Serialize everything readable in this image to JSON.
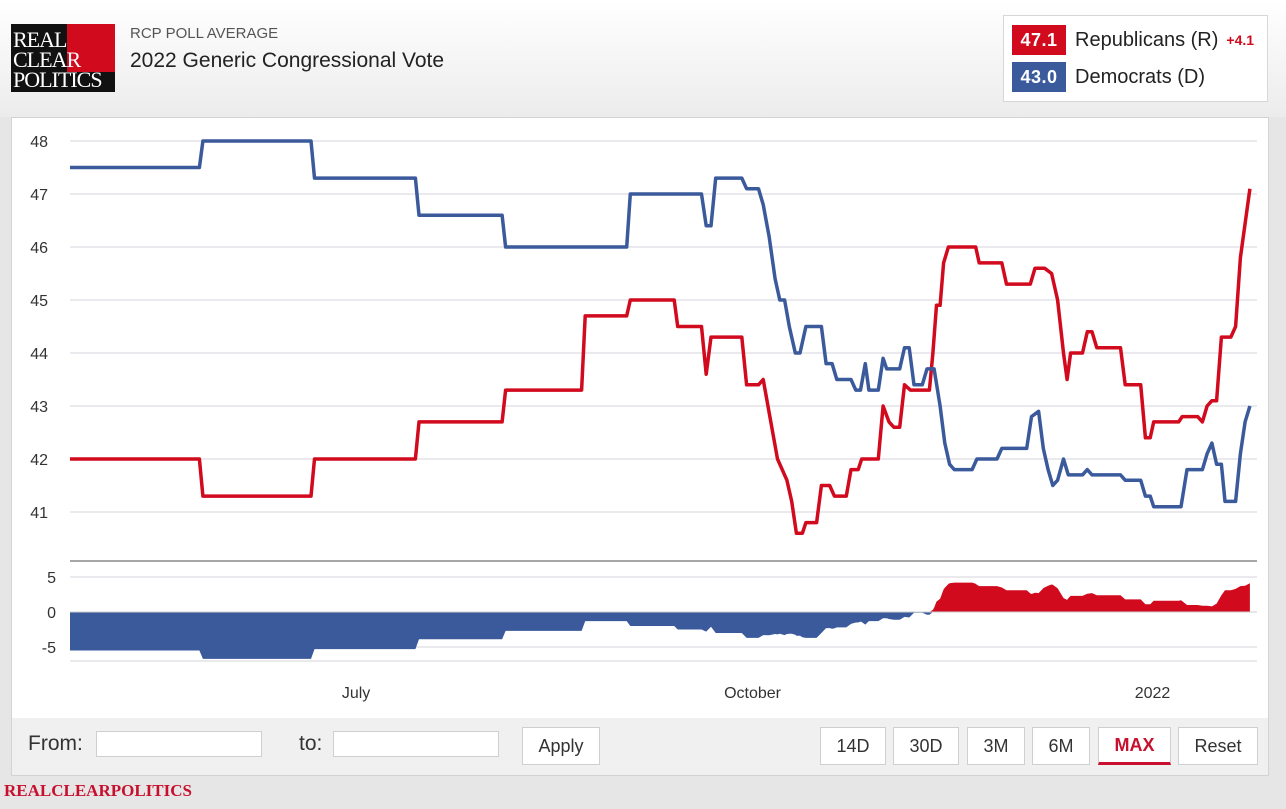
{
  "brand": {
    "logo_lines": [
      "REAL",
      "CLEAR",
      "POLITICS"
    ],
    "footer": "REALCLEARPOLITICS",
    "red": "#d10a1e",
    "blue": "#3a5a9c"
  },
  "header": {
    "supertitle": "RCP POLL AVERAGE",
    "title": "2022 Generic Congressional Vote"
  },
  "legend": [
    {
      "value": "47.1",
      "name": "Republicans (R)",
      "spread": "+4.1",
      "color": "#d10a1e"
    },
    {
      "value": "43.0",
      "name": "Democrats (D)",
      "spread": "",
      "color": "#3a5a9c"
    }
  ],
  "controls": {
    "from_label": "From:",
    "to_label": "to:",
    "from_value": "",
    "to_value": "",
    "apply_label": "Apply",
    "ranges": [
      "14D",
      "30D",
      "3M",
      "6M",
      "MAX"
    ],
    "active_range": "MAX",
    "reset_label": "Reset"
  },
  "chart_data": {
    "type": "line",
    "title": "2022 Generic Congressional Vote",
    "ylim": [
      40.5,
      48.3
    ],
    "yticks": [
      41,
      42,
      43,
      44,
      45,
      46,
      47,
      48
    ],
    "spread_ylim": [
      -9.3,
      9.3
    ],
    "spread_yticks": [
      -5,
      0,
      5
    ],
    "xlim": [
      0,
      1
    ],
    "xticks": [
      {
        "label": "July",
        "x": 0.241
      },
      {
        "label": "October",
        "x": 0.575
      },
      {
        "label": "2022",
        "x": 0.912
      }
    ],
    "series": [
      {
        "name": "Republicans (R)",
        "color": "#d10a1e",
        "points": [
          [
            0.0,
            42.0
          ],
          [
            0.109,
            42.0
          ],
          [
            0.112,
            41.3
          ],
          [
            0.203,
            41.3
          ],
          [
            0.206,
            42.0
          ],
          [
            0.291,
            42.0
          ],
          [
            0.294,
            42.7
          ],
          [
            0.364,
            42.7
          ],
          [
            0.367,
            43.3
          ],
          [
            0.431,
            43.3
          ],
          [
            0.434,
            44.7
          ],
          [
            0.469,
            44.7
          ],
          [
            0.472,
            45.0
          ],
          [
            0.509,
            45.0
          ],
          [
            0.512,
            44.5
          ],
          [
            0.532,
            44.5
          ],
          [
            0.536,
            43.6
          ],
          [
            0.54,
            44.3
          ],
          [
            0.566,
            44.3
          ],
          [
            0.57,
            43.4
          ],
          [
            0.58,
            43.4
          ],
          [
            0.584,
            43.5
          ],
          [
            0.596,
            42.0
          ],
          [
            0.604,
            41.6
          ],
          [
            0.608,
            41.2
          ],
          [
            0.612,
            40.6
          ],
          [
            0.617,
            40.6
          ],
          [
            0.62,
            40.8
          ],
          [
            0.629,
            40.8
          ],
          [
            0.633,
            41.5
          ],
          [
            0.64,
            41.5
          ],
          [
            0.644,
            41.3
          ],
          [
            0.654,
            41.3
          ],
          [
            0.658,
            41.8
          ],
          [
            0.664,
            41.8
          ],
          [
            0.667,
            42.0
          ],
          [
            0.681,
            42.0
          ],
          [
            0.685,
            43.0
          ],
          [
            0.69,
            42.7
          ],
          [
            0.694,
            42.6
          ],
          [
            0.699,
            42.6
          ],
          [
            0.703,
            43.4
          ],
          [
            0.708,
            43.3
          ],
          [
            0.724,
            43.3
          ],
          [
            0.727,
            44.0
          ],
          [
            0.73,
            44.9
          ],
          [
            0.733,
            44.9
          ],
          [
            0.736,
            45.7
          ],
          [
            0.74,
            46.0
          ],
          [
            0.763,
            46.0
          ],
          [
            0.766,
            45.7
          ],
          [
            0.785,
            45.7
          ],
          [
            0.789,
            45.3
          ],
          [
            0.809,
            45.3
          ],
          [
            0.813,
            45.6
          ],
          [
            0.821,
            45.6
          ],
          [
            0.827,
            45.5
          ],
          [
            0.832,
            45.0
          ],
          [
            0.837,
            44.0
          ],
          [
            0.84,
            43.5
          ],
          [
            0.843,
            44.0
          ],
          [
            0.853,
            44.0
          ],
          [
            0.857,
            44.4
          ],
          [
            0.861,
            44.4
          ],
          [
            0.865,
            44.1
          ],
          [
            0.885,
            44.1
          ],
          [
            0.889,
            43.4
          ],
          [
            0.902,
            43.4
          ],
          [
            0.906,
            42.4
          ],
          [
            0.91,
            42.4
          ],
          [
            0.913,
            42.7
          ],
          [
            0.934,
            42.7
          ],
          [
            0.937,
            42.8
          ],
          [
            0.95,
            42.8
          ],
          [
            0.954,
            42.7
          ],
          [
            0.958,
            43.0
          ],
          [
            0.962,
            43.1
          ],
          [
            0.966,
            43.1
          ],
          [
            0.97,
            44.3
          ],
          [
            0.978,
            44.3
          ],
          [
            0.982,
            44.5
          ],
          [
            0.986,
            45.8
          ],
          [
            0.994,
            47.1
          ]
        ]
      },
      {
        "name": "Democrats (D)",
        "color": "#3a5a9c",
        "points": [
          [
            0.0,
            47.5
          ],
          [
            0.109,
            47.5
          ],
          [
            0.112,
            48.0
          ],
          [
            0.203,
            48.0
          ],
          [
            0.206,
            47.3
          ],
          [
            0.291,
            47.3
          ],
          [
            0.294,
            46.6
          ],
          [
            0.364,
            46.6
          ],
          [
            0.367,
            46.0
          ],
          [
            0.469,
            46.0
          ],
          [
            0.472,
            47.0
          ],
          [
            0.532,
            47.0
          ],
          [
            0.536,
            46.4
          ],
          [
            0.54,
            46.4
          ],
          [
            0.544,
            47.3
          ],
          [
            0.566,
            47.3
          ],
          [
            0.57,
            47.1
          ],
          [
            0.58,
            47.1
          ],
          [
            0.584,
            46.8
          ],
          [
            0.589,
            46.2
          ],
          [
            0.594,
            45.4
          ],
          [
            0.598,
            45.0
          ],
          [
            0.602,
            45.0
          ],
          [
            0.606,
            44.5
          ],
          [
            0.611,
            44.0
          ],
          [
            0.615,
            44.0
          ],
          [
            0.62,
            44.5
          ],
          [
            0.633,
            44.5
          ],
          [
            0.637,
            43.8
          ],
          [
            0.642,
            43.8
          ],
          [
            0.646,
            43.5
          ],
          [
            0.658,
            43.5
          ],
          [
            0.662,
            43.3
          ],
          [
            0.666,
            43.3
          ],
          [
            0.67,
            43.8
          ],
          [
            0.673,
            43.3
          ],
          [
            0.681,
            43.3
          ],
          [
            0.685,
            43.9
          ],
          [
            0.688,
            43.7
          ],
          [
            0.699,
            43.7
          ],
          [
            0.703,
            44.1
          ],
          [
            0.707,
            44.1
          ],
          [
            0.711,
            43.4
          ],
          [
            0.718,
            43.4
          ],
          [
            0.722,
            43.7
          ],
          [
            0.728,
            43.7
          ],
          [
            0.733,
            43.0
          ],
          [
            0.737,
            42.3
          ],
          [
            0.741,
            41.9
          ],
          [
            0.745,
            41.8
          ],
          [
            0.76,
            41.8
          ],
          [
            0.764,
            42.0
          ],
          [
            0.781,
            42.0
          ],
          [
            0.785,
            42.2
          ],
          [
            0.806,
            42.2
          ],
          [
            0.81,
            42.8
          ],
          [
            0.816,
            42.9
          ],
          [
            0.82,
            42.2
          ],
          [
            0.824,
            41.8
          ],
          [
            0.828,
            41.5
          ],
          [
            0.832,
            41.6
          ],
          [
            0.837,
            42.0
          ],
          [
            0.841,
            41.7
          ],
          [
            0.853,
            41.7
          ],
          [
            0.857,
            41.8
          ],
          [
            0.861,
            41.7
          ],
          [
            0.885,
            41.7
          ],
          [
            0.889,
            41.6
          ],
          [
            0.902,
            41.6
          ],
          [
            0.906,
            41.3
          ],
          [
            0.91,
            41.3
          ],
          [
            0.913,
            41.1
          ],
          [
            0.936,
            41.1
          ],
          [
            0.941,
            41.8
          ],
          [
            0.954,
            41.8
          ],
          [
            0.958,
            42.1
          ],
          [
            0.962,
            42.3
          ],
          [
            0.966,
            41.9
          ],
          [
            0.97,
            41.9
          ],
          [
            0.973,
            41.2
          ],
          [
            0.982,
            41.2
          ],
          [
            0.986,
            42.1
          ],
          [
            0.99,
            42.7
          ],
          [
            0.994,
            43.0
          ]
        ]
      }
    ]
  }
}
